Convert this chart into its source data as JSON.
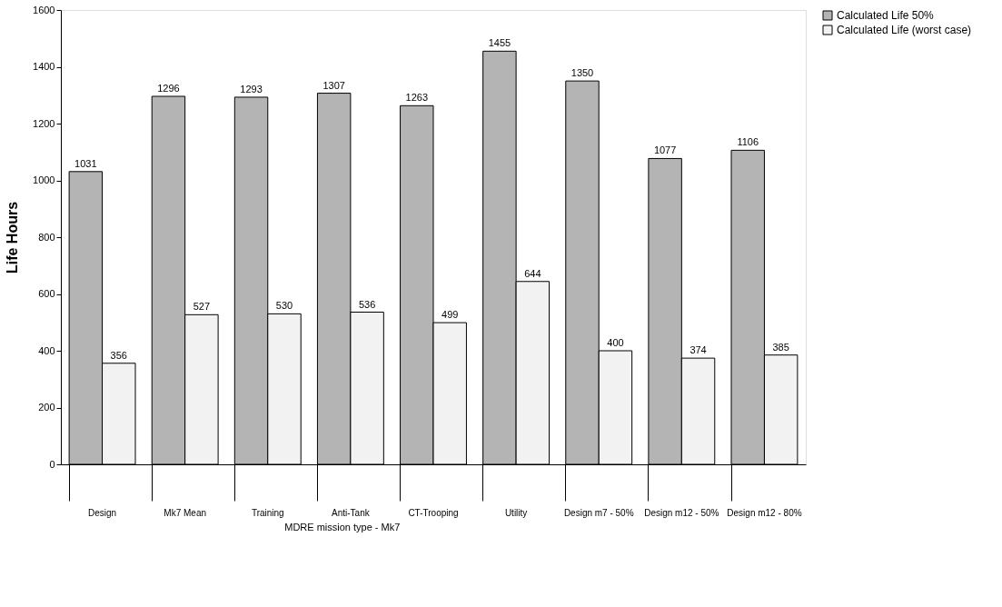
{
  "chart_data": {
    "type": "bar",
    "ylabel": "Life Hours",
    "categories": [
      "Design",
      "Mk7 Mean",
      "Training",
      "Anti-Tank",
      "CT-Trooping",
      "Utility",
      "Design m7 - 50%",
      "Design m12 - 50%",
      "Design m12 - 80%"
    ],
    "series": [
      {
        "name": "Calculated Life 50%",
        "color": "#b4b4b4",
        "values": [
          1031,
          1296,
          1293,
          1307,
          1263,
          1455,
          1350,
          1077,
          1106
        ]
      },
      {
        "name": "Calculated Life (worst case)",
        "color": "#f2f2f2",
        "values": [
          356,
          527,
          530,
          536,
          499,
          644,
          400,
          374,
          385
        ]
      }
    ],
    "ylim": [
      0,
      1600
    ],
    "yticks": [
      0,
      200,
      400,
      600,
      800,
      1000,
      1200,
      1400,
      1600
    ],
    "data_labels": true,
    "grid": false,
    "legend": "right",
    "annotations": [
      "MDRE mission type - Mk7"
    ]
  }
}
